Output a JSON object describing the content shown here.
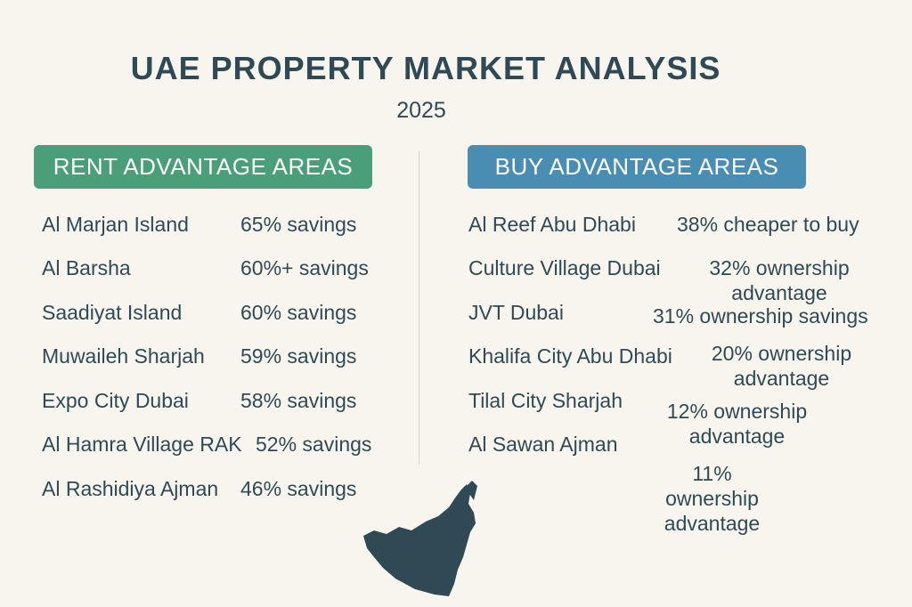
{
  "header": {
    "title": "UAE PROPERTY MARKET ANALYSIS",
    "subtitle": "2025"
  },
  "rent": {
    "heading": "RENT ADVANTAGE AREAS",
    "rows": [
      [
        "Al Marjan Island",
        "65% savings"
      ],
      [
        "Al Barsha",
        "60%+ savings"
      ],
      [
        "Saadiyat Island",
        "60% savings"
      ],
      [
        "Muwaileh Sharjah",
        "59% savings"
      ],
      [
        "Expo City Dubai",
        "58% savings"
      ],
      [
        "Al Hamra Village RAK",
        "52% savings"
      ],
      [
        "Al Rashidiya Ajman",
        "46% savings"
      ]
    ]
  },
  "buy": {
    "heading": "BUY ADVANTAGE AREAS",
    "rows": [
      [
        "Al Reef Abu Dhabi",
        "38% cheaper to buy"
      ],
      [
        "Culture Village Dubai",
        "32% ownership advantage"
      ],
      [
        "JVT Dubai",
        "31% ownership savings"
      ],
      [
        "Khalifa City Abu Dhabi",
        "20% ownership advantage"
      ],
      [
        "Tilal City Sharjah",
        "12% ownership advantage"
      ],
      [
        "Al Sawan Ajman",
        "11% ownership advantage"
      ]
    ]
  }
}
